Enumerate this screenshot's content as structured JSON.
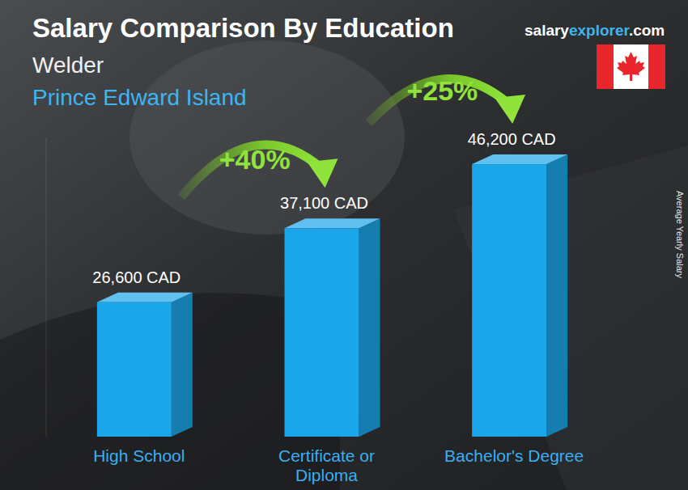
{
  "chart_data": {
    "type": "bar",
    "title": "Salary Comparison By Education",
    "subtitle": [
      "Welder",
      "Prince Edward Island"
    ],
    "source": [
      "salary",
      "explorer",
      ".com"
    ],
    "y_label": "Average Yearly Salary",
    "categories": [
      "High School",
      "Certificate or Diploma",
      "Bachelor's Degree"
    ],
    "values": [
      26600,
      37100,
      46200
    ],
    "value_labels": [
      "26,600 CAD",
      "37,100 CAD",
      "46,200 CAD"
    ],
    "annotations": [
      "+40%",
      "+25%"
    ],
    "color": "#1ca6ea",
    "ylim": [
      7500,
      50000
    ],
    "data_labels": true,
    "tick_labels": false,
    "grid": false
  }
}
